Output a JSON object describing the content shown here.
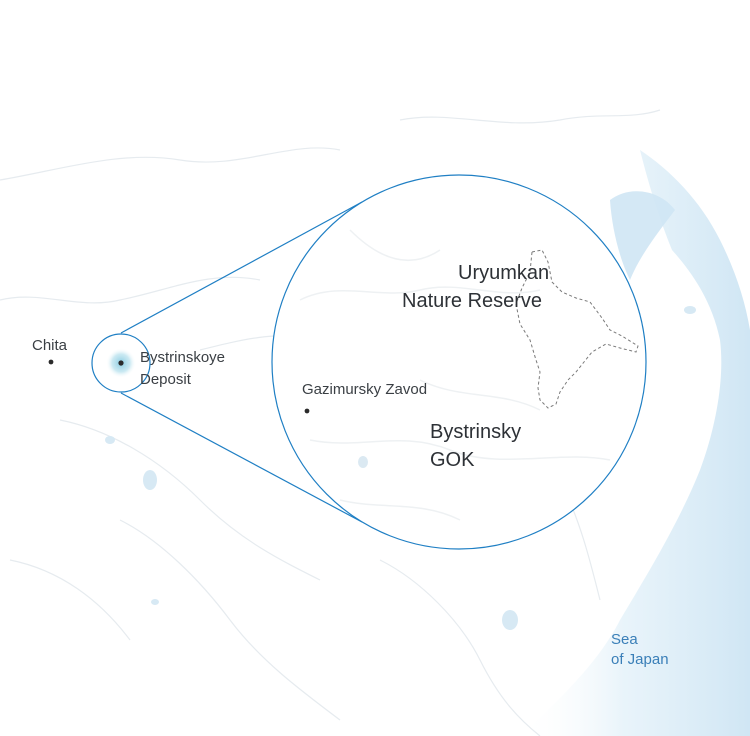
{
  "colors": {
    "land": "#ffffff",
    "sea": "#cfe6f4",
    "zoom_line": "#1f7fc4",
    "rivers": "#e6ebef",
    "lakes": "#d7e9f4",
    "dot": "#2b2b2b",
    "reserve_border": "#7a7a7a",
    "deposit_glow": "#9fd3e6"
  },
  "places": {
    "chita": "Chita",
    "deposit_line1": "Bystrinskoye",
    "deposit_line2": "Deposit",
    "gazimursky": "Gazimursky Zavod"
  },
  "inset": {
    "reserve_line1": "Uryumkan",
    "reserve_line2": "Nature Reserve",
    "gok_line1": "Bystrinsky",
    "gok_line2": "GOK"
  },
  "sea": {
    "line1": "Sea",
    "line2": "of Japan"
  }
}
